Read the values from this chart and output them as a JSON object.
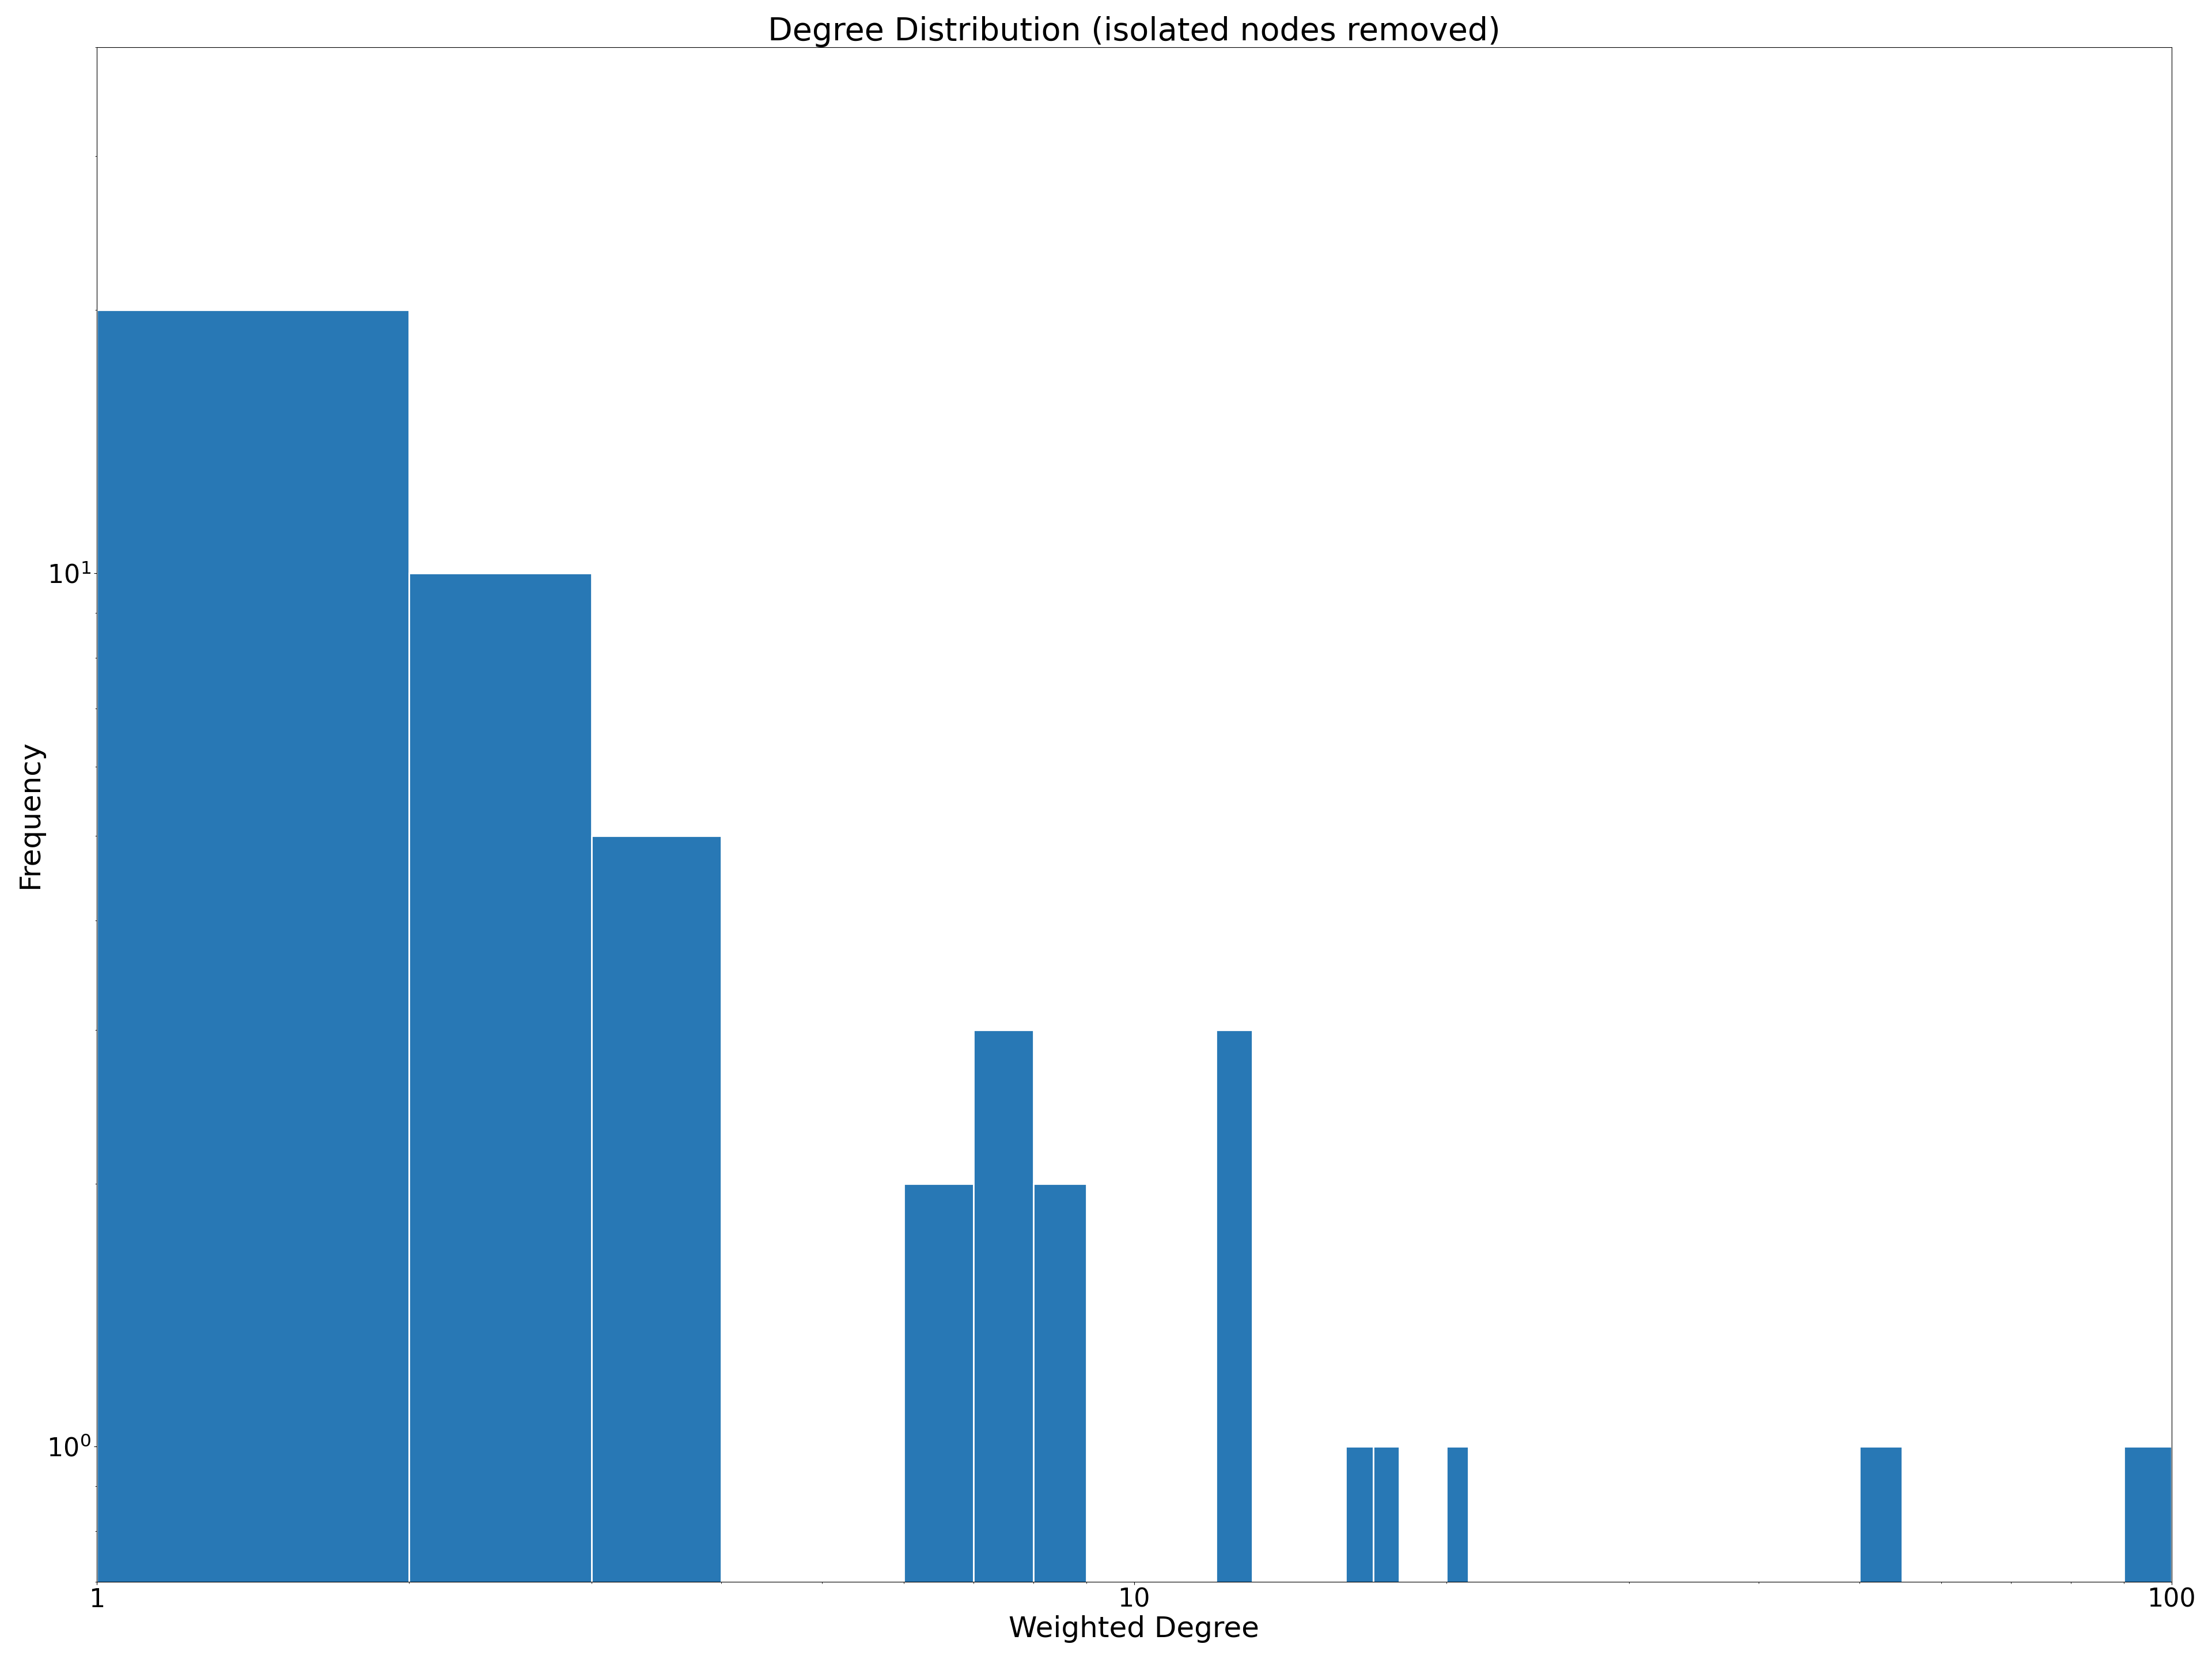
{
  "title": "Degree Distribution (isolated nodes removed)",
  "xlabel": "Weighted Degree",
  "ylabel": "Frequency",
  "bar_color": "#2878b5",
  "background_color": "#ffffff",
  "title_fontsize": 40,
  "label_fontsize": 36,
  "tick_fontsize": 32,
  "bin_left_edges": [
    1,
    2,
    3,
    4,
    5,
    6,
    7,
    8,
    9,
    10,
    11,
    12,
    13,
    14,
    15,
    16,
    17,
    18,
    19,
    20,
    21,
    25,
    30,
    40,
    50,
    55,
    60,
    70,
    80,
    90
  ],
  "bin_right_edges": [
    2,
    3,
    4,
    5,
    6,
    7,
    8,
    9,
    10,
    11,
    12,
    13,
    14,
    15,
    16,
    17,
    18,
    19,
    20,
    21,
    25,
    30,
    40,
    50,
    55,
    60,
    70,
    80,
    90,
    100
  ],
  "counts": [
    20,
    10,
    5,
    0,
    0,
    2,
    3,
    2,
    0,
    0,
    0,
    3,
    0,
    0,
    0,
    1,
    1,
    0,
    0,
    1,
    0,
    0,
    0,
    0,
    1,
    0,
    0,
    0,
    0,
    1
  ],
  "xlim": [
    1,
    100
  ],
  "ylim": [
    0.7,
    40
  ]
}
